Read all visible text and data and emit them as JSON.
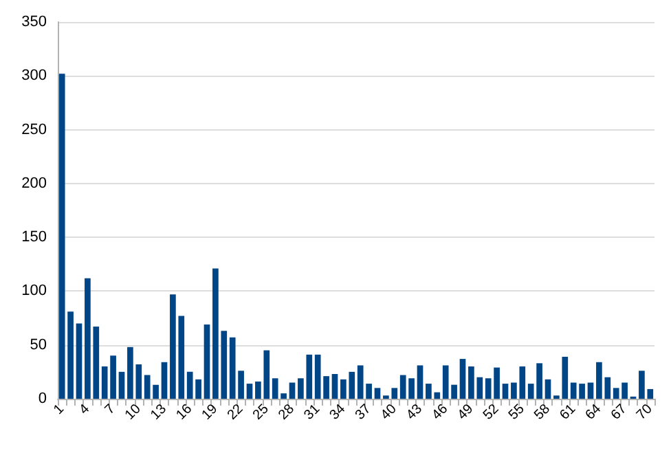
{
  "chart_data": {
    "type": "bar",
    "categories": [
      "1",
      null,
      null,
      "4",
      null,
      null,
      "7",
      null,
      null,
      "10",
      null,
      null,
      "13",
      null,
      null,
      "16",
      null,
      null,
      "19",
      null,
      null,
      "22",
      null,
      null,
      "25",
      null,
      null,
      "28",
      null,
      null,
      "31",
      null,
      null,
      "34",
      null,
      null,
      "37",
      null,
      null,
      "40",
      null,
      null,
      "43",
      null,
      null,
      "46",
      null,
      null,
      "49",
      null,
      null,
      "52",
      null,
      null,
      "55",
      null,
      null,
      "58",
      null,
      null,
      "61",
      null,
      null,
      "64",
      null,
      null,
      "67",
      null,
      null,
      "70"
    ],
    "values": [
      302,
      81,
      70,
      112,
      67,
      30,
      40,
      25,
      48,
      32,
      22,
      13,
      34,
      97,
      77,
      25,
      18,
      69,
      121,
      63,
      57,
      26,
      14,
      16,
      45,
      19,
      5,
      15,
      19,
      41,
      41,
      21,
      23,
      18,
      25,
      31,
      14,
      10,
      3,
      10,
      22,
      19,
      31,
      14,
      6,
      31,
      13,
      37,
      30,
      20,
      19,
      29,
      14,
      15,
      30,
      14,
      33,
      18,
      3,
      39,
      15,
      14,
      15,
      34,
      20,
      10,
      15,
      2,
      26,
      9
    ],
    "color": "#004586",
    "ylim": [
      0,
      350
    ],
    "yticks": [
      0,
      50,
      100,
      150,
      200,
      250,
      300,
      350
    ],
    "grid": "y"
  }
}
